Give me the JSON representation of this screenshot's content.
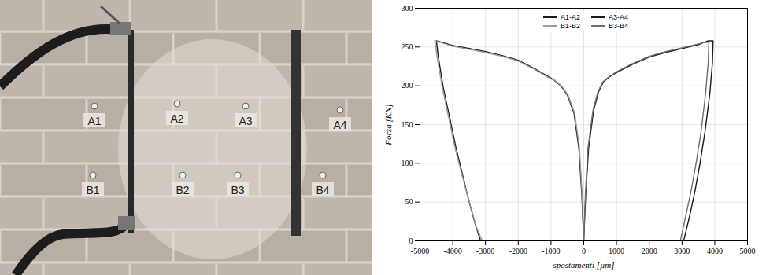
{
  "chart_data": {
    "type": "line",
    "xlabel": "spostamenti [µm]",
    "ylabel": "Forza [KN]",
    "xlim": [
      -5000,
      5000
    ],
    "xticks": [
      -5000,
      -4000,
      -3000,
      -2000,
      -1000,
      0,
      1000,
      2000,
      3000,
      4000,
      5000
    ],
    "ylim": [
      0,
      300
    ],
    "yticks": [
      0,
      50,
      100,
      150,
      200,
      250,
      300
    ],
    "grid": true,
    "legend": "top",
    "series": [
      {
        "name": "A1-A2",
        "color": "#1a1a1a",
        "line_style": "solid",
        "x": [
          0,
          -60,
          -150,
          -300,
          -500,
          -700,
          -900,
          -1000,
          -1500,
          -2000,
          -2500,
          -3000,
          -3500,
          -4000,
          -4500,
          -4450,
          -4300,
          -4100,
          -3900,
          -3700,
          -3500,
          -3300,
          -3150
        ],
        "values": [
          0,
          60,
          120,
          165,
          188,
          200,
          207,
          210,
          222,
          233,
          239,
          244,
          248,
          252,
          258,
          240,
          200,
          160,
          120,
          85,
          50,
          20,
          0
        ]
      },
      {
        "name": "A3-A4",
        "color": "#1a1a1a",
        "line_style": "solid",
        "x": [
          0,
          60,
          150,
          300,
          450,
          600,
          800,
          1000,
          1500,
          2000,
          2500,
          3000,
          3500,
          3800,
          3950,
          3930,
          3850,
          3700,
          3550,
          3400,
          3250,
          3050
        ],
        "values": [
          0,
          60,
          120,
          168,
          192,
          205,
          212,
          217,
          228,
          237,
          243,
          248,
          253,
          258,
          258,
          230,
          190,
          140,
          100,
          65,
          35,
          0
        ]
      },
      {
        "name": "B1-B2",
        "color": "#9a9a9a",
        "line_style": "solid",
        "x": [
          0,
          -50,
          -130,
          -280,
          -480,
          -680,
          -880,
          -1000,
          -1500,
          -2000,
          -2500,
          -3000,
          -3500,
          -4000,
          -4550,
          -4480,
          -4320,
          -4120,
          -3920,
          -3700,
          -3480,
          -3280,
          -3100
        ],
        "values": [
          0,
          60,
          120,
          165,
          188,
          200,
          207,
          209,
          221,
          232,
          238,
          243,
          247,
          251,
          258,
          238,
          198,
          158,
          118,
          82,
          48,
          18,
          0
        ]
      },
      {
        "name": "B3-B4",
        "color": "#6e6e6e",
        "line_style": "solid",
        "x": [
          0,
          50,
          130,
          280,
          430,
          580,
          780,
          1000,
          1500,
          2000,
          2500,
          3000,
          3400,
          3700,
          3820,
          3800,
          3720,
          3580,
          3430,
          3280,
          3130,
          2950
        ],
        "values": [
          0,
          60,
          120,
          168,
          192,
          205,
          212,
          218,
          229,
          238,
          244,
          249,
          253,
          256,
          256,
          230,
          190,
          140,
          100,
          65,
          35,
          0
        ]
      }
    ]
  },
  "photo": {
    "labels": [
      "A1",
      "A2",
      "A3",
      "A4",
      "B1",
      "B2",
      "B3",
      "B4"
    ]
  }
}
